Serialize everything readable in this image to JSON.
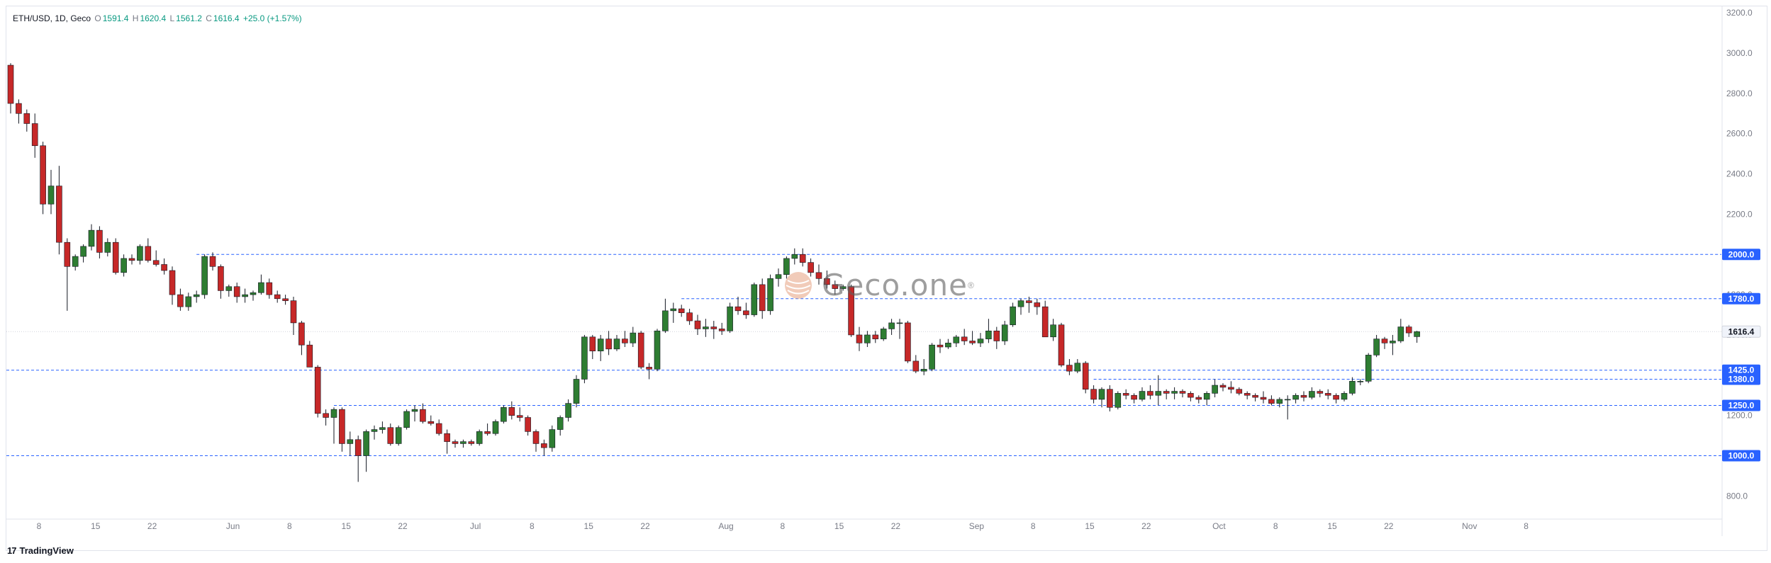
{
  "legend": {
    "symbol": "ETH/USD, 1D, Geco",
    "open_label": "O",
    "open": "1591.4",
    "high_label": "H",
    "high": "1620.4",
    "low_label": "L",
    "low": "1561.2",
    "close_label": "C",
    "close": "1616.4",
    "change": "+25.0 (+1.57%)"
  },
  "watermark": {
    "text": "Geco.one",
    "symbol": "®"
  },
  "footer": {
    "brand": "TradingView",
    "logo_glyph": "17"
  },
  "colors": {
    "up": "#089981",
    "down": "#f23645",
    "up_fill": "#2e7d32",
    "down_fill": "#c62828",
    "level_line": "#2962ff",
    "tag_bg": "#2962ff"
  },
  "chart_data": {
    "type": "candlestick",
    "symbol": "ETH/USD",
    "interval": "1D",
    "y_axis": {
      "min": 800,
      "max": 3200,
      "ticks": [
        800,
        1200,
        1400,
        1600,
        1800,
        2000,
        2200,
        2400,
        2600,
        2800,
        3000,
        3200
      ],
      "tick_labels": [
        "800.0",
        "1200.0",
        "1400.0",
        "1600.0",
        "1800.0",
        "2000.0",
        "2200.0",
        "2400.0",
        "2600.0",
        "2800.0",
        "3000.0",
        "3200.0"
      ]
    },
    "x_axis": {
      "tick_labels": [
        "8",
        "15",
        "22",
        "Jun",
        "8",
        "15",
        "22",
        "Jul",
        "8",
        "15",
        "22",
        "Aug",
        "8",
        "15",
        "22",
        "Sep",
        "8",
        "15",
        "22",
        "Oct",
        "8",
        "15",
        "22",
        "Nov",
        "8"
      ],
      "tick_day_index": [
        0,
        7,
        14,
        24,
        31,
        38,
        45,
        54,
        61,
        68,
        75,
        85,
        92,
        99,
        106,
        116,
        123,
        130,
        137,
        146,
        153,
        160,
        167,
        177,
        184
      ]
    },
    "horizontal_levels": [
      {
        "value": 2000,
        "label": "2000.0",
        "start_index": 23
      },
      {
        "value": 1780,
        "label": "1780.0",
        "start_index": 83
      },
      {
        "value": 1425,
        "label": "1425.0",
        "start_index": -1
      },
      {
        "value": 1380,
        "label": "1380.0",
        "start_index": 134
      },
      {
        "value": 1250,
        "label": "1250.0",
        "start_index": 40
      },
      {
        "value": 1000,
        "label": "1000.0",
        "start_index": -1
      }
    ],
    "current_price": {
      "value": 1616.4,
      "label": "1616.4"
    },
    "ohlc": [
      [
        2940,
        2950,
        2700,
        2750
      ],
      [
        2750,
        2770,
        2650,
        2700
      ],
      [
        2700,
        2720,
        2610,
        2650
      ],
      [
        2650,
        2700,
        2480,
        2540
      ],
      [
        2540,
        2560,
        2200,
        2250
      ],
      [
        2250,
        2420,
        2200,
        2340
      ],
      [
        2340,
        2440,
        2000,
        2060
      ],
      [
        2060,
        2080,
        1720,
        1940
      ],
      [
        1940,
        2000,
        1920,
        1990
      ],
      [
        1990,
        2050,
        1960,
        2040
      ],
      [
        2040,
        2150,
        2020,
        2120
      ],
      [
        2120,
        2140,
        1980,
        2010
      ],
      [
        2010,
        2080,
        1990,
        2060
      ],
      [
        2060,
        2080,
        1900,
        1910
      ],
      [
        1910,
        2000,
        1890,
        1980
      ],
      [
        1980,
        2000,
        1950,
        1970
      ],
      [
        1970,
        2050,
        1950,
        2040
      ],
      [
        2040,
        2080,
        1960,
        1970
      ],
      [
        1970,
        2020,
        1940,
        1950
      ],
      [
        1950,
        1980,
        1900,
        1920
      ],
      [
        1920,
        1940,
        1750,
        1800
      ],
      [
        1800,
        1830,
        1720,
        1740
      ],
      [
        1740,
        1810,
        1720,
        1790
      ],
      [
        1790,
        1820,
        1760,
        1800
      ],
      [
        1800,
        2000,
        1780,
        1990
      ],
      [
        1990,
        2010,
        1920,
        1940
      ],
      [
        1940,
        1950,
        1780,
        1820
      ],
      [
        1820,
        1850,
        1790,
        1840
      ],
      [
        1840,
        1860,
        1760,
        1790
      ],
      [
        1790,
        1830,
        1760,
        1800
      ],
      [
        1800,
        1820,
        1770,
        1810
      ],
      [
        1810,
        1900,
        1800,
        1860
      ],
      [
        1860,
        1880,
        1780,
        1800
      ],
      [
        1800,
        1820,
        1760,
        1780
      ],
      [
        1780,
        1800,
        1750,
        1770
      ],
      [
        1770,
        1790,
        1600,
        1660
      ],
      [
        1660,
        1670,
        1500,
        1550
      ],
      [
        1550,
        1570,
        1440,
        1440
      ],
      [
        1440,
        1450,
        1190,
        1210
      ],
      [
        1210,
        1230,
        1150,
        1190
      ],
      [
        1190,
        1240,
        1060,
        1230
      ],
      [
        1230,
        1240,
        1020,
        1060
      ],
      [
        1060,
        1120,
        1000,
        1080
      ],
      [
        1080,
        1100,
        870,
        1000
      ],
      [
        1000,
        1130,
        920,
        1120
      ],
      [
        1120,
        1150,
        1080,
        1130
      ],
      [
        1130,
        1170,
        1110,
        1140
      ],
      [
        1140,
        1160,
        1050,
        1060
      ],
      [
        1060,
        1150,
        1050,
        1140
      ],
      [
        1140,
        1230,
        1130,
        1220
      ],
      [
        1220,
        1250,
        1170,
        1230
      ],
      [
        1230,
        1260,
        1160,
        1170
      ],
      [
        1170,
        1200,
        1150,
        1160
      ],
      [
        1160,
        1180,
        1100,
        1110
      ],
      [
        1110,
        1130,
        1010,
        1070
      ],
      [
        1070,
        1080,
        1040,
        1060
      ],
      [
        1060,
        1080,
        1040,
        1070
      ],
      [
        1070,
        1080,
        1050,
        1060
      ],
      [
        1060,
        1130,
        1050,
        1120
      ],
      [
        1120,
        1160,
        1100,
        1110
      ],
      [
        1110,
        1180,
        1100,
        1170
      ],
      [
        1170,
        1250,
        1160,
        1240
      ],
      [
        1240,
        1270,
        1180,
        1200
      ],
      [
        1200,
        1240,
        1170,
        1190
      ],
      [
        1190,
        1200,
        1100,
        1120
      ],
      [
        1120,
        1130,
        1020,
        1060
      ],
      [
        1060,
        1080,
        1000,
        1040
      ],
      [
        1040,
        1150,
        1020,
        1130
      ],
      [
        1130,
        1200,
        1100,
        1190
      ],
      [
        1190,
        1280,
        1170,
        1260
      ],
      [
        1260,
        1400,
        1240,
        1380
      ],
      [
        1380,
        1600,
        1360,
        1590
      ],
      [
        1590,
        1600,
        1480,
        1520
      ],
      [
        1520,
        1600,
        1470,
        1580
      ],
      [
        1580,
        1620,
        1500,
        1530
      ],
      [
        1530,
        1600,
        1520,
        1580
      ],
      [
        1580,
        1620,
        1540,
        1560
      ],
      [
        1560,
        1640,
        1540,
        1610
      ],
      [
        1610,
        1620,
        1430,
        1440
      ],
      [
        1440,
        1460,
        1380,
        1430
      ],
      [
        1430,
        1630,
        1420,
        1620
      ],
      [
        1620,
        1780,
        1610,
        1720
      ],
      [
        1720,
        1760,
        1660,
        1730
      ],
      [
        1730,
        1750,
        1690,
        1710
      ],
      [
        1710,
        1730,
        1650,
        1670
      ],
      [
        1670,
        1700,
        1600,
        1630
      ],
      [
        1630,
        1680,
        1590,
        1640
      ],
      [
        1640,
        1670,
        1580,
        1630
      ],
      [
        1630,
        1660,
        1600,
        1620
      ],
      [
        1620,
        1760,
        1610,
        1740
      ],
      [
        1740,
        1790,
        1700,
        1720
      ],
      [
        1720,
        1760,
        1680,
        1700
      ],
      [
        1700,
        1860,
        1690,
        1850
      ],
      [
        1850,
        1880,
        1680,
        1720
      ],
      [
        1720,
        1900,
        1700,
        1880
      ],
      [
        1880,
        1930,
        1840,
        1900
      ],
      [
        1900,
        1990,
        1880,
        1980
      ],
      [
        1980,
        2030,
        1950,
        2000
      ],
      [
        2000,
        2030,
        1940,
        1960
      ],
      [
        1960,
        1980,
        1890,
        1910
      ],
      [
        1910,
        1950,
        1850,
        1880
      ],
      [
        1880,
        1920,
        1830,
        1850
      ],
      [
        1850,
        1870,
        1800,
        1830
      ],
      [
        1830,
        1850,
        1820,
        1840
      ],
      [
        1840,
        1850,
        1590,
        1600
      ],
      [
        1600,
        1640,
        1520,
        1560
      ],
      [
        1560,
        1620,
        1540,
        1600
      ],
      [
        1600,
        1620,
        1560,
        1580
      ],
      [
        1580,
        1640,
        1570,
        1630
      ],
      [
        1630,
        1680,
        1600,
        1660
      ],
      [
        1660,
        1680,
        1580,
        1660
      ],
      [
        1660,
        1670,
        1460,
        1470
      ],
      [
        1470,
        1500,
        1410,
        1420
      ],
      [
        1420,
        1480,
        1400,
        1430
      ],
      [
        1430,
        1560,
        1420,
        1550
      ],
      [
        1550,
        1580,
        1510,
        1540
      ],
      [
        1540,
        1580,
        1530,
        1560
      ],
      [
        1560,
        1600,
        1540,
        1590
      ],
      [
        1590,
        1630,
        1550,
        1570
      ],
      [
        1570,
        1620,
        1550,
        1560
      ],
      [
        1560,
        1610,
        1540,
        1580
      ],
      [
        1580,
        1680,
        1560,
        1620
      ],
      [
        1620,
        1640,
        1530,
        1570
      ],
      [
        1570,
        1670,
        1550,
        1650
      ],
      [
        1650,
        1760,
        1640,
        1740
      ],
      [
        1740,
        1780,
        1700,
        1770
      ],
      [
        1770,
        1790,
        1710,
        1760
      ],
      [
        1760,
        1780,
        1700,
        1740
      ],
      [
        1740,
        1770,
        1590,
        1590
      ],
      [
        1590,
        1680,
        1570,
        1650
      ],
      [
        1650,
        1660,
        1440,
        1450
      ],
      [
        1450,
        1480,
        1400,
        1420
      ],
      [
        1420,
        1480,
        1410,
        1460
      ],
      [
        1460,
        1470,
        1310,
        1330
      ],
      [
        1330,
        1350,
        1260,
        1280
      ],
      [
        1280,
        1340,
        1240,
        1330
      ],
      [
        1330,
        1350,
        1220,
        1240
      ],
      [
        1240,
        1320,
        1230,
        1310
      ],
      [
        1310,
        1330,
        1280,
        1300
      ],
      [
        1300,
        1310,
        1260,
        1280
      ],
      [
        1280,
        1340,
        1270,
        1320
      ],
      [
        1320,
        1350,
        1280,
        1300
      ],
      [
        1300,
        1400,
        1250,
        1320
      ],
      [
        1320,
        1330,
        1280,
        1310
      ],
      [
        1310,
        1340,
        1280,
        1320
      ],
      [
        1320,
        1330,
        1290,
        1310
      ],
      [
        1310,
        1320,
        1270,
        1290
      ],
      [
        1290,
        1300,
        1260,
        1280
      ],
      [
        1280,
        1320,
        1250,
        1310
      ],
      [
        1310,
        1380,
        1290,
        1350
      ],
      [
        1350,
        1360,
        1320,
        1340
      ],
      [
        1340,
        1370,
        1310,
        1330
      ],
      [
        1330,
        1340,
        1300,
        1310
      ],
      [
        1310,
        1320,
        1280,
        1300
      ],
      [
        1300,
        1310,
        1270,
        1290
      ],
      [
        1290,
        1320,
        1260,
        1280
      ],
      [
        1280,
        1300,
        1250,
        1260
      ],
      [
        1260,
        1290,
        1240,
        1280
      ],
      [
        1280,
        1300,
        1180,
        1280
      ],
      [
        1280,
        1310,
        1260,
        1300
      ],
      [
        1300,
        1320,
        1270,
        1290
      ],
      [
        1290,
        1340,
        1280,
        1320
      ],
      [
        1320,
        1330,
        1290,
        1310
      ],
      [
        1310,
        1330,
        1280,
        1300
      ],
      [
        1300,
        1310,
        1260,
        1280
      ],
      [
        1280,
        1320,
        1270,
        1310
      ],
      [
        1310,
        1390,
        1300,
        1370
      ],
      [
        1370,
        1380,
        1350,
        1370
      ],
      [
        1370,
        1510,
        1360,
        1500
      ],
      [
        1500,
        1600,
        1490,
        1580
      ],
      [
        1580,
        1590,
        1530,
        1560
      ],
      [
        1560,
        1600,
        1500,
        1570
      ],
      [
        1570,
        1680,
        1560,
        1640
      ],
      [
        1640,
        1650,
        1590,
        1610
      ],
      [
        1591.4,
        1620.4,
        1561.2,
        1616.4
      ]
    ]
  }
}
